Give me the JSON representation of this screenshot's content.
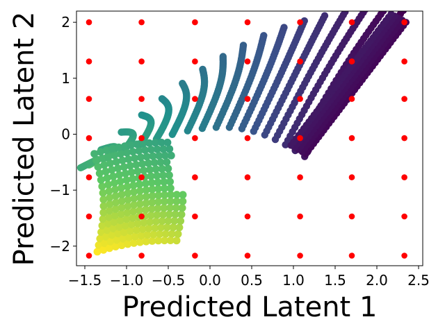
{
  "chart_data": {
    "type": "scatter",
    "title": "",
    "xlabel": "Predicted Latent 1",
    "ylabel": "Predicted Latent 2",
    "xlim": [
      -1.6,
      2.55
    ],
    "ylim": [
      -2.35,
      2.2
    ],
    "xticks": [
      -1.5,
      -1.0,
      -0.5,
      0.0,
      0.5,
      1.0,
      1.5,
      2.0,
      2.5
    ],
    "xtick_labels": [
      "−1.5",
      "−1.0",
      "−0.5",
      "0.0",
      "0.5",
      "1.0",
      "1.5",
      "2.0",
      "2.5"
    ],
    "yticks": [
      -2,
      -1,
      0,
      1,
      2
    ],
    "ytick_labels": [
      "−2",
      "−1",
      "0",
      "1",
      "2"
    ],
    "grid": false,
    "legend": false,
    "colormap": "viridis",
    "series": [
      {
        "marker_color": "#ff0000",
        "x": [
          -1.45,
          -0.82,
          -0.18,
          0.45,
          1.08,
          1.7,
          2.33
        ],
        "y": [
          2.0,
          1.3,
          0.63,
          -0.07,
          -0.77,
          -1.47,
          -2.17
        ]
      }
    ],
    "density_cloud": {
      "colors": [
        "#440154",
        "#3b528b",
        "#21918c",
        "#5ec962",
        "#fde725"
      ],
      "fingers_count": 17
    }
  }
}
